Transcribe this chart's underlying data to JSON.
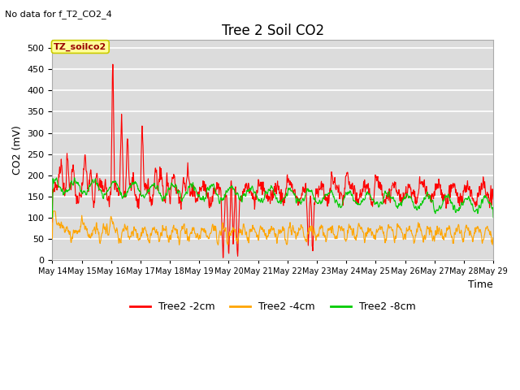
{
  "title": "Tree 2 Soil CO2",
  "subtitle": "No data for f_T2_CO2_4",
  "ylabel": "CO2 (mV)",
  "xlabel": "Time",
  "annotation": "TZ_soilco2",
  "ylim": [
    0,
    520
  ],
  "yticks": [
    0,
    50,
    100,
    150,
    200,
    250,
    300,
    350,
    400,
    450,
    500
  ],
  "xtick_labels": [
    "May 14",
    "May 15",
    "May 16",
    "May 17",
    "May 18",
    "May 19",
    "May 20",
    "May 21",
    "May 22",
    "May 23",
    "May 24",
    "May 25",
    "May 26",
    "May 27",
    "May 28",
    "May 29"
  ],
  "colors": {
    "red": "#FF0000",
    "orange": "#FFA500",
    "green": "#00CC00"
  },
  "legend_labels": [
    "Tree2 -2cm",
    "Tree2 -4cm",
    "Tree2 -8cm"
  ],
  "bg_color": "#DCDCDC",
  "grid_color": "#FFFFFF",
  "annotation_facecolor": "#FFFF99",
  "annotation_edgecolor": "#CCCC00",
  "title_fontsize": 12,
  "subtitle_fontsize": 8,
  "ylabel_fontsize": 9,
  "xlabel_fontsize": 9,
  "tick_labelsize": 8,
  "legend_fontsize": 9
}
